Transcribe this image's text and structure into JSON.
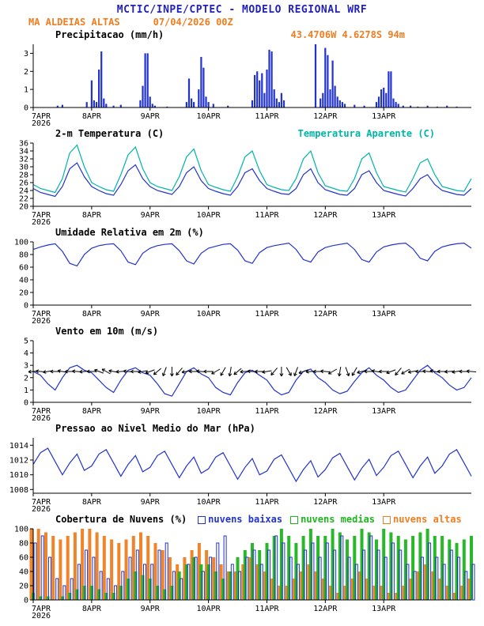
{
  "theme": {
    "blue": "#2222bb",
    "orange": "#f07d1e",
    "cyan": "#00b4a8",
    "line": "#2233cc",
    "green": "#1eb41e",
    "black": "#000000"
  },
  "header": {
    "title": "MCTIC/INPE/CPTEC - MODELO REGIONAL WRF",
    "station": "MA ALDEIAS ALTAS",
    "run": "07/04/2026 00Z",
    "location": "43.4706W 4.6278S 94m"
  },
  "x_axis": {
    "hours": 180,
    "tick_step": 24,
    "labels": [
      "7APR",
      "8APR",
      "9APR",
      "10APR",
      "11APR",
      "12APR",
      "13APR"
    ],
    "year_label": "2026"
  },
  "chart_data": [
    {
      "id": "precip",
      "type": "bar",
      "title": "Precipitacao (mm/h)",
      "ylim": [
        0,
        3.5
      ],
      "yticks": [
        0,
        1,
        2,
        3
      ],
      "bar_color": "#2233cc",
      "points": [
        [
          10,
          0.1
        ],
        [
          12,
          0.15
        ],
        [
          22,
          0.3
        ],
        [
          24,
          1.5
        ],
        [
          25,
          0.4
        ],
        [
          26,
          0.3
        ],
        [
          27,
          2.1
        ],
        [
          28,
          3.1
        ],
        [
          29,
          0.5
        ],
        [
          30,
          0.2
        ],
        [
          33,
          0.1
        ],
        [
          36,
          0.15
        ],
        [
          44,
          0.4
        ],
        [
          45,
          1.2
        ],
        [
          46,
          3.0
        ],
        [
          47,
          3.0
        ],
        [
          48,
          0.6
        ],
        [
          49,
          0.2
        ],
        [
          50,
          0.1
        ],
        [
          55,
          0.05
        ],
        [
          63,
          0.3
        ],
        [
          64,
          1.6
        ],
        [
          65,
          0.5
        ],
        [
          66,
          0.3
        ],
        [
          68,
          1.0
        ],
        [
          69,
          2.8
        ],
        [
          70,
          2.2
        ],
        [
          71,
          0.6
        ],
        [
          72,
          0.3
        ],
        [
          74,
          0.2
        ],
        [
          80,
          0.1
        ],
        [
          90,
          0.4
        ],
        [
          91,
          1.8
        ],
        [
          92,
          2.0
        ],
        [
          93,
          1.5
        ],
        [
          94,
          1.9
        ],
        [
          95,
          0.8
        ],
        [
          96,
          2.1
        ],
        [
          97,
          3.2
        ],
        [
          98,
          3.1
        ],
        [
          99,
          1.0
        ],
        [
          100,
          0.5
        ],
        [
          101,
          0.3
        ],
        [
          102,
          0.8
        ],
        [
          103,
          0.4
        ],
        [
          116,
          3.6
        ],
        [
          118,
          0.5
        ],
        [
          119,
          0.8
        ],
        [
          120,
          3.3
        ],
        [
          121,
          2.9
        ],
        [
          122,
          1.0
        ],
        [
          123,
          2.6
        ],
        [
          124,
          1.2
        ],
        [
          125,
          0.6
        ],
        [
          126,
          0.4
        ],
        [
          127,
          0.3
        ],
        [
          128,
          0.2
        ],
        [
          132,
          0.15
        ],
        [
          136,
          0.1
        ],
        [
          141,
          0.3
        ],
        [
          142,
          0.6
        ],
        [
          143,
          1.0
        ],
        [
          144,
          1.1
        ],
        [
          145,
          0.8
        ],
        [
          146,
          2.0
        ],
        [
          147,
          2.0
        ],
        [
          148,
          0.5
        ],
        [
          149,
          0.3
        ],
        [
          150,
          0.2
        ],
        [
          152,
          0.1
        ],
        [
          155,
          0.1
        ],
        [
          158,
          0.05
        ],
        [
          162,
          0.1
        ],
        [
          166,
          0.05
        ],
        [
          170,
          0.1
        ],
        [
          174,
          0.05
        ]
      ]
    },
    {
      "id": "temp",
      "type": "line",
      "title": "2-m Temperatura (C)",
      "secondary_title": "Temperatura Aparente (C)",
      "ylim": [
        20,
        36
      ],
      "yticks": [
        20,
        22,
        24,
        26,
        28,
        30,
        32,
        34,
        36
      ],
      "x_step_hours": 3,
      "series": [
        {
          "name": "2-m Temperatura (C)",
          "color": "#2233cc",
          "values": [
            24.5,
            23.5,
            23,
            22.5,
            25,
            29.5,
            31,
            27.5,
            25,
            24,
            23.2,
            22.8,
            25.5,
            29,
            30.5,
            27,
            25,
            24,
            23.5,
            23,
            25,
            28.5,
            30,
            26.5,
            24.5,
            23.8,
            23.2,
            22.8,
            25,
            28.5,
            29.5,
            26.5,
            24.5,
            23.8,
            23.2,
            23,
            24.5,
            28,
            29.5,
            26,
            24.2,
            23.6,
            23,
            22.8,
            24.5,
            28,
            29,
            26,
            24,
            23.5,
            23,
            22.6,
            24.5,
            27,
            28,
            25.5,
            24,
            23.5,
            23,
            22.8,
            24.5
          ]
        },
        {
          "name": "Temperatura Aparente (C)",
          "color": "#00b4a8",
          "values": [
            25.5,
            24.5,
            24,
            23.5,
            27,
            33.5,
            35.5,
            30,
            26,
            25,
            24.2,
            23.8,
            28,
            33,
            35,
            29.5,
            26,
            25,
            24.5,
            24,
            27.5,
            32.5,
            34.5,
            29,
            25.5,
            24.8,
            24.2,
            23.8,
            27.5,
            32.5,
            34,
            29,
            25.5,
            24.8,
            24.2,
            24,
            27,
            32,
            34,
            28.5,
            25.2,
            24.6,
            24,
            23.8,
            27,
            32,
            33.5,
            28.5,
            25,
            24.5,
            24,
            23.6,
            27,
            31,
            32,
            28,
            25,
            24.5,
            24,
            23.8,
            27
          ]
        }
      ]
    },
    {
      "id": "rh",
      "type": "line",
      "title": "Umidade Relativa em 2m (%)",
      "ylim": [
        0,
        100
      ],
      "yticks": [
        0,
        20,
        40,
        60,
        80,
        100
      ],
      "x_step_hours": 3,
      "series": [
        {
          "name": "Umidade Relativa em 2m",
          "color": "#2233cc",
          "values": [
            88,
            92,
            95,
            97,
            85,
            66,
            62,
            80,
            90,
            94,
            96,
            97,
            86,
            68,
            64,
            82,
            90,
            94,
            96,
            97,
            86,
            70,
            65,
            82,
            90,
            93,
            96,
            97,
            87,
            70,
            66,
            83,
            91,
            94,
            96,
            98,
            88,
            72,
            68,
            84,
            91,
            94,
            96,
            98,
            88,
            72,
            68,
            84,
            92,
            95,
            97,
            98,
            89,
            74,
            70,
            85,
            92,
            95,
            97,
            98,
            90
          ]
        }
      ]
    },
    {
      "id": "wind",
      "type": "line",
      "title": "Vento em 10m (m/s)",
      "ylim": [
        0,
        5
      ],
      "yticks": [
        0,
        1,
        2,
        3,
        4,
        5
      ],
      "x_step_hours": 3,
      "series": [
        {
          "name": "Velocidade do vento",
          "color": "#2233cc",
          "values": [
            2.5,
            2.2,
            1.5,
            1.0,
            2.0,
            2.8,
            3.0,
            2.6,
            2.4,
            1.8,
            1.2,
            0.8,
            1.8,
            2.6,
            2.8,
            2.4,
            2.2,
            1.5,
            0.7,
            0.5,
            1.5,
            2.5,
            2.8,
            2.3,
            2.0,
            1.2,
            0.8,
            0.6,
            1.6,
            2.4,
            2.6,
            2.2,
            1.8,
            1.0,
            0.6,
            0.8,
            1.8,
            2.5,
            2.7,
            2.0,
            1.6,
            1.0,
            0.7,
            0.9,
            1.7,
            2.4,
            2.8,
            2.2,
            1.8,
            1.2,
            0.8,
            1.0,
            1.8,
            2.6,
            3.0,
            2.4,
            2.0,
            1.4,
            1.0,
            1.2,
            2.0
          ]
        }
      ],
      "barbs": {
        "y": 2.5,
        "color": "#000000",
        "x_step_hours": 3,
        "directions_deg": [
          185,
          175,
          190,
          180,
          170,
          180,
          175,
          185,
          180,
          160,
          150,
          170,
          185,
          175,
          180,
          190,
          200,
          220,
          250,
          270,
          230,
          190,
          180,
          175,
          180,
          210,
          240,
          260,
          220,
          185,
          175,
          180,
          190,
          230,
          270,
          300,
          250,
          200,
          185,
          180,
          175,
          210,
          260,
          290,
          240,
          195,
          180,
          170,
          180,
          200,
          230,
          210,
          190,
          180,
          175,
          170,
          180,
          185,
          190,
          180,
          175
        ]
      }
    },
    {
      "id": "pressure",
      "type": "line",
      "title": "Pressao ao Nivel Medio do Mar (hPa)",
      "ylim": [
        1007.5,
        1015
      ],
      "yticks": [
        1008,
        1010,
        1012,
        1014
      ],
      "x_step_hours": 3,
      "series": [
        {
          "name": "Pressao ao nivel medio do mar",
          "color": "#2233cc",
          "values": [
            1011.4,
            1013.0,
            1013.6,
            1011.8,
            1010.0,
            1011.6,
            1012.8,
            1010.6,
            1011.2,
            1012.8,
            1013.4,
            1011.6,
            1009.8,
            1011.4,
            1012.6,
            1010.4,
            1011.0,
            1012.6,
            1013.2,
            1011.4,
            1009.6,
            1011.2,
            1012.4,
            1010.2,
            1010.8,
            1012.4,
            1013.0,
            1011.2,
            1009.4,
            1011.0,
            1012.2,
            1010.0,
            1010.5,
            1012.1,
            1012.7,
            1010.9,
            1009.1,
            1010.7,
            1011.9,
            1009.7,
            1010.7,
            1012.3,
            1012.9,
            1011.1,
            1009.3,
            1010.9,
            1012.1,
            1009.9,
            1011.0,
            1012.6,
            1013.2,
            1011.4,
            1009.6,
            1011.2,
            1012.4,
            1010.2,
            1011.2,
            1012.8,
            1013.4,
            1011.6,
            1009.8
          ]
        }
      ]
    },
    {
      "id": "clouds",
      "type": "bar-multi",
      "title": "Cobertura de Nuvens (%)",
      "ylim": [
        0,
        100
      ],
      "yticks": [
        0,
        20,
        40,
        60,
        80,
        100
      ],
      "x_step_hours": 3,
      "legend": [
        {
          "label": "nuvens baixas",
          "color": "#2233cc"
        },
        {
          "label": "nuvens medias",
          "color": "#1eb41e"
        },
        {
          "label": "nuvens altas",
          "color": "#f07d1e"
        }
      ],
      "series": [
        {
          "name": "nuvens altas",
          "color": "#f07d1e",
          "fill": true,
          "values": [
            100,
            100,
            95,
            90,
            85,
            90,
            95,
            100,
            100,
            95,
            90,
            85,
            80,
            85,
            90,
            95,
            90,
            80,
            70,
            60,
            50,
            60,
            70,
            80,
            70,
            60,
            50,
            40,
            40,
            50,
            60,
            50,
            40,
            30,
            20,
            20,
            30,
            40,
            50,
            40,
            30,
            20,
            10,
            20,
            30,
            40,
            30,
            20,
            20,
            10,
            10,
            20,
            30,
            40,
            50,
            40,
            30,
            20,
            10,
            20,
            30
          ]
        },
        {
          "name": "nuvens medias",
          "color": "#1eb41e",
          "fill": true,
          "values": [
            10,
            5,
            5,
            0,
            5,
            10,
            15,
            20,
            20,
            15,
            10,
            10,
            20,
            30,
            40,
            35,
            30,
            20,
            15,
            20,
            40,
            50,
            60,
            50,
            50,
            40,
            30,
            40,
            60,
            70,
            80,
            70,
            80,
            90,
            100,
            90,
            80,
            90,
            100,
            90,
            90,
            100,
            95,
            85,
            90,
            100,
            95,
            85,
            100,
            95,
            90,
            85,
            90,
            95,
            100,
            90,
            90,
            85,
            80,
            85,
            90
          ]
        },
        {
          "name": "nuvens baixas",
          "color": "#2233cc",
          "fill": false,
          "values": [
            80,
            90,
            60,
            30,
            20,
            30,
            50,
            70,
            60,
            40,
            30,
            20,
            40,
            60,
            70,
            50,
            50,
            70,
            80,
            40,
            30,
            50,
            60,
            40,
            60,
            80,
            90,
            50,
            40,
            60,
            70,
            50,
            70,
            90,
            80,
            60,
            50,
            70,
            80,
            60,
            80,
            70,
            90,
            60,
            50,
            70,
            90,
            70,
            60,
            80,
            70,
            50,
            40,
            60,
            80,
            60,
            50,
            70,
            60,
            40,
            50
          ]
        }
      ]
    }
  ]
}
